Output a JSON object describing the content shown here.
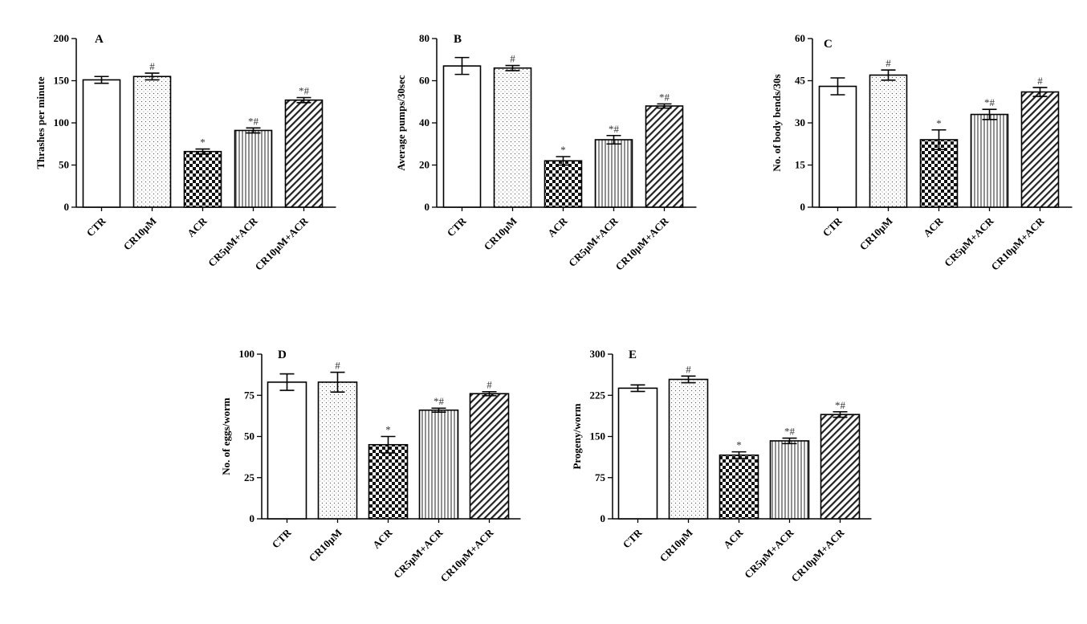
{
  "chart_data": [
    {
      "type": "bar",
      "panel_label": "A",
      "ylabel": "Thrashes per minute",
      "ylim": [
        0,
        200
      ],
      "yticks": [
        0,
        50,
        100,
        150,
        200
      ],
      "categories": [
        "CTR",
        "CR10μM",
        "ACR",
        "CR5μM+ACR",
        "CR10μM+ACR"
      ],
      "values": [
        151,
        155,
        66,
        91,
        127
      ],
      "errors": [
        4,
        4,
        3,
        3,
        3
      ],
      "significance": [
        "",
        "#",
        "*",
        "*#",
        "*#"
      ],
      "patterns": [
        "blank",
        "dots",
        "checker",
        "vlines",
        "diag"
      ],
      "grid": false
    },
    {
      "type": "bar",
      "panel_label": "B",
      "ylabel": "Average pumps/30sec",
      "ylim": [
        0,
        80
      ],
      "yticks": [
        0,
        20,
        40,
        60,
        80
      ],
      "categories": [
        "CTR",
        "CR10μM",
        "ACR",
        "CR5μM+ACR",
        "CR10μM+ACR"
      ],
      "values": [
        67,
        66,
        22,
        32,
        48
      ],
      "errors": [
        4,
        1.2,
        2,
        2,
        1
      ],
      "significance": [
        "",
        "#",
        "*",
        "*#",
        "*#"
      ],
      "patterns": [
        "blank",
        "dots",
        "checker",
        "vlines",
        "diag"
      ],
      "grid": false
    },
    {
      "type": "bar",
      "panel_label": "C",
      "ylabel": "No. of body bends/30s",
      "ylim": [
        0,
        60
      ],
      "yticks": [
        0,
        15,
        30,
        45,
        60
      ],
      "categories": [
        "CTR",
        "CR10μM",
        "ACR",
        "CR5μM+ACR",
        "CR10μM+ACR"
      ],
      "values": [
        43,
        47,
        24,
        33,
        41
      ],
      "errors": [
        3,
        1.8,
        3.5,
        1.8,
        1.6
      ],
      "significance": [
        "",
        "#",
        "*",
        "*#",
        "#"
      ],
      "patterns": [
        "blank",
        "dots",
        "checker",
        "vlines",
        "diag"
      ],
      "grid": false
    },
    {
      "type": "bar",
      "panel_label": "D",
      "ylabel": "No. of eggs/worm",
      "ylim": [
        0,
        100
      ],
      "yticks": [
        0,
        25,
        50,
        75,
        100
      ],
      "categories": [
        "CTR",
        "CR10μM",
        "ACR",
        "CR5μM+ACR",
        "CR10μM+ACR"
      ],
      "values": [
        83,
        83,
        45,
        66,
        76
      ],
      "errors": [
        5,
        6,
        5,
        1.2,
        1.2
      ],
      "significance": [
        "",
        "#",
        "*",
        "*#",
        "#"
      ],
      "patterns": [
        "blank",
        "dots",
        "checker",
        "vlines",
        "diag"
      ],
      "grid": false
    },
    {
      "type": "bar",
      "panel_label": "E",
      "ylabel": "Progeny/worm",
      "ylim": [
        0,
        300
      ],
      "yticks": [
        0,
        75,
        150,
        225,
        300
      ],
      "categories": [
        "CTR",
        "CR10μM",
        "ACR",
        "CR5μM+ACR",
        "CR10μM+ACR"
      ],
      "values": [
        238,
        254,
        116,
        142,
        190
      ],
      "errors": [
        6,
        6,
        6,
        5,
        5
      ],
      "significance": [
        "",
        "#",
        "*",
        "*#",
        "*#"
      ],
      "patterns": [
        "blank",
        "dots",
        "checker",
        "vlines",
        "diag"
      ],
      "grid": false
    }
  ]
}
